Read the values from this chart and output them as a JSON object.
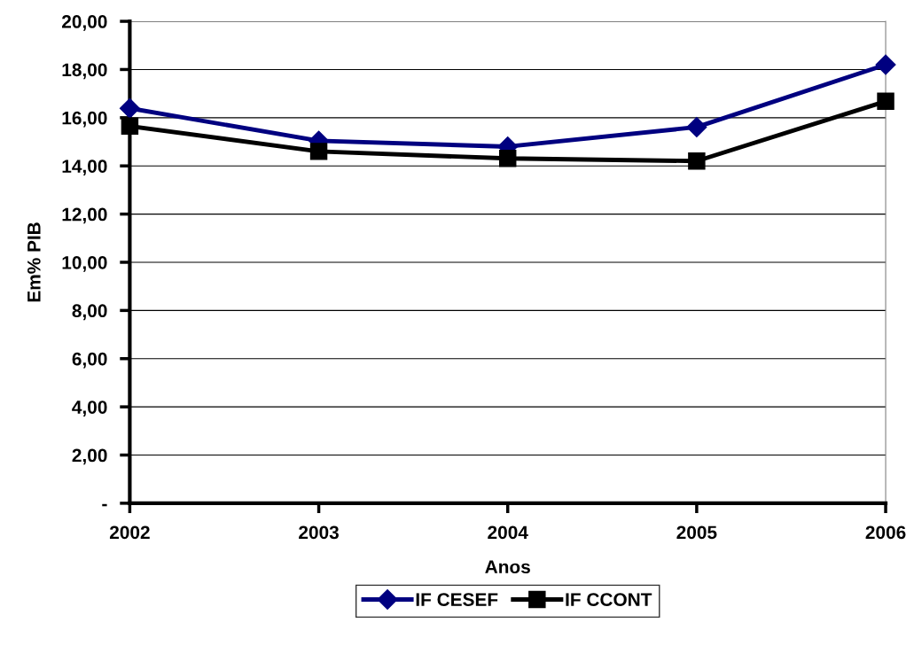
{
  "chart_data": {
    "type": "line",
    "xlabel": "Anos",
    "ylabel": "Em% PIB",
    "categories": [
      "2002",
      "2003",
      "2004",
      "2005",
      "2006"
    ],
    "series": [
      {
        "name": "IF CESEF",
        "color": "#000080",
        "marker": "diamond",
        "values": [
          16.39,
          15.04,
          14.8,
          15.61,
          18.2
        ]
      },
      {
        "name": "IF CCONT",
        "color": "#000000",
        "marker": "square",
        "values": [
          15.65,
          14.6,
          14.31,
          14.2,
          16.68
        ]
      }
    ],
    "ylim": [
      0,
      20
    ],
    "yticks": [
      {
        "value": 0,
        "label": "-"
      },
      {
        "value": 2,
        "label": "2,00"
      },
      {
        "value": 4,
        "label": "4,00"
      },
      {
        "value": 6,
        "label": "6,00"
      },
      {
        "value": 8,
        "label": "8,00"
      },
      {
        "value": 10,
        "label": "10,00"
      },
      {
        "value": 12,
        "label": "12,00"
      },
      {
        "value": 14,
        "label": "14,00"
      },
      {
        "value": 16,
        "label": "16,00"
      },
      {
        "value": 18,
        "label": "18,00"
      },
      {
        "value": 20,
        "label": "20,00"
      }
    ],
    "grid": "y",
    "legend": "bottom",
    "line_style": "solid"
  }
}
